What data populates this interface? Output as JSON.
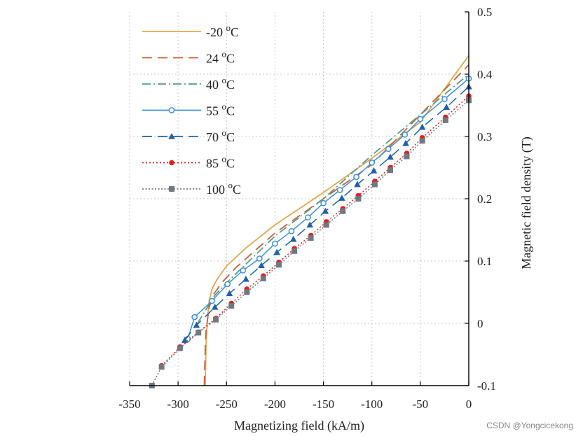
{
  "chart_data": {
    "type": "line",
    "title": "",
    "xlabel": "Magnetizing field (kA/m)",
    "ylabel": "Magnetic field density (T)",
    "xlim": [
      -350,
      0
    ],
    "ylim": [
      -0.1,
      0.5
    ],
    "xticks": [
      -350,
      -300,
      -250,
      -200,
      -150,
      -100,
      -50,
      0
    ],
    "yticks": [
      -0.1,
      0,
      0.1,
      0.2,
      0.3,
      0.4,
      0.5
    ],
    "grid": true,
    "legend_position": "top-left",
    "series": [
      {
        "name": "-20 °C",
        "label_main": "-20",
        "label_unit": "C",
        "label_sup": "o",
        "color": "#e0a850",
        "dash": "solid",
        "marker": "none",
        "points": [
          [
            -272,
            -0.1
          ],
          [
            -271,
            -0.03
          ],
          [
            -270,
            0.0
          ],
          [
            -268,
            0.035
          ],
          [
            -265,
            0.055
          ],
          [
            -260,
            0.07
          ],
          [
            -250,
            0.092
          ],
          [
            -230,
            0.121
          ],
          [
            -200,
            0.158
          ],
          [
            -150,
            0.21
          ],
          [
            -100,
            0.265
          ],
          [
            -50,
            0.323
          ],
          [
            0,
            0.43
          ]
        ]
      },
      {
        "name": "24 °C",
        "label_main": "24",
        "label_unit": "C",
        "label_sup": "o",
        "color": "#c8613a",
        "dash": "long",
        "marker": "none",
        "points": [
          [
            -273,
            -0.1
          ],
          [
            -272,
            -0.04
          ],
          [
            -271,
            -0.01
          ],
          [
            -268,
            0.025
          ],
          [
            -264,
            0.045
          ],
          [
            -255,
            0.065
          ],
          [
            -240,
            0.09
          ],
          [
            -200,
            0.145
          ],
          [
            -150,
            0.2
          ],
          [
            -100,
            0.255
          ],
          [
            -50,
            0.335
          ],
          [
            0,
            0.415
          ]
        ]
      },
      {
        "name": "40 °C",
        "label_main": "40",
        "label_unit": "C",
        "label_sup": "o",
        "color": "#5a9a88",
        "dash": "dashdot",
        "marker": "none",
        "points": [
          [
            -280,
            0.0
          ],
          [
            -272,
            0.02
          ],
          [
            -262,
            0.045
          ],
          [
            -250,
            0.065
          ],
          [
            -200,
            0.14
          ],
          [
            -150,
            0.2
          ],
          [
            -100,
            0.27
          ],
          [
            -50,
            0.335
          ],
          [
            0,
            0.4
          ]
        ]
      },
      {
        "name": "55 °C",
        "label_main": "55",
        "label_unit": "C",
        "label_sup": "o",
        "color": "#3d8fe0",
        "dash": "solid",
        "marker": "open-circle",
        "points": [
          [
            -290,
            -0.025
          ],
          [
            -283,
            0.01
          ],
          [
            -265,
            0.036
          ],
          [
            -249,
            0.063
          ],
          [
            -233,
            0.085
          ],
          [
            -216,
            0.104
          ],
          [
            -200,
            0.128
          ],
          [
            -183,
            0.148
          ],
          [
            -166,
            0.17
          ],
          [
            -150,
            0.193
          ],
          [
            -133,
            0.214
          ],
          [
            -116,
            0.235
          ],
          [
            -100,
            0.258
          ],
          [
            -83,
            0.28
          ],
          [
            -66,
            0.303
          ],
          [
            -50,
            0.328
          ],
          [
            -25,
            0.36
          ],
          [
            0,
            0.393
          ]
        ]
      },
      {
        "name": "70 °C",
        "label_main": "70",
        "label_unit": "C",
        "label_sup": "o",
        "color": "#2060a8",
        "dash": "long",
        "marker": "filled-triangle",
        "points": [
          [
            -293,
            -0.027
          ],
          [
            -281,
            -0.003
          ],
          [
            -262,
            0.026
          ],
          [
            -247,
            0.048
          ],
          [
            -230,
            0.071
          ],
          [
            -214,
            0.093
          ],
          [
            -198,
            0.114
          ],
          [
            -181,
            0.135
          ],
          [
            -164,
            0.158
          ],
          [
            -148,
            0.18
          ],
          [
            -131,
            0.201
          ],
          [
            -115,
            0.223
          ],
          [
            -98,
            0.245
          ],
          [
            -81,
            0.267
          ],
          [
            -65,
            0.289
          ],
          [
            -48,
            0.315
          ],
          [
            -23,
            0.347
          ],
          [
            0,
            0.38
          ]
        ]
      },
      {
        "name": "85 °C",
        "label_main": "85",
        "label_unit": "C",
        "label_sup": "o",
        "color": "#e02020",
        "dash": "dotted",
        "marker": "filled-circle",
        "points": [
          [
            -317,
            -0.068
          ],
          [
            -298,
            -0.038
          ],
          [
            -279,
            -0.014
          ],
          [
            -261,
            0.008
          ],
          [
            -245,
            0.032
          ],
          [
            -229,
            0.055
          ],
          [
            -212,
            0.076
          ],
          [
            -196,
            0.098
          ],
          [
            -180,
            0.12
          ],
          [
            -163,
            0.141
          ],
          [
            -147,
            0.163
          ],
          [
            -130,
            0.184
          ],
          [
            -114,
            0.205
          ],
          [
            -97,
            0.228
          ],
          [
            -81,
            0.25
          ],
          [
            -64,
            0.273
          ],
          [
            -48,
            0.298
          ],
          [
            -24,
            0.331
          ],
          [
            0,
            0.365
          ]
        ]
      },
      {
        "name": "100 °C",
        "label_main": "100",
        "label_unit": "C",
        "label_sup": "o",
        "color": "#707880",
        "dash": "dotted-fine",
        "marker": "filled-square",
        "points": [
          [
            -327,
            -0.1
          ],
          [
            -317,
            -0.07
          ],
          [
            -298,
            -0.04
          ],
          [
            -279,
            -0.015
          ],
          [
            -261,
            0.006
          ],
          [
            -245,
            0.028
          ],
          [
            -229,
            0.05
          ],
          [
            -212,
            0.072
          ],
          [
            -196,
            0.094
          ],
          [
            -180,
            0.116
          ],
          [
            -163,
            0.137
          ],
          [
            -147,
            0.158
          ],
          [
            -130,
            0.18
          ],
          [
            -114,
            0.2
          ],
          [
            -97,
            0.223
          ],
          [
            -81,
            0.246
          ],
          [
            -64,
            0.268
          ],
          [
            -48,
            0.293
          ],
          [
            -24,
            0.326
          ],
          [
            0,
            0.358
          ]
        ]
      }
    ]
  },
  "watermark": "CSDN @Yongcicekong"
}
